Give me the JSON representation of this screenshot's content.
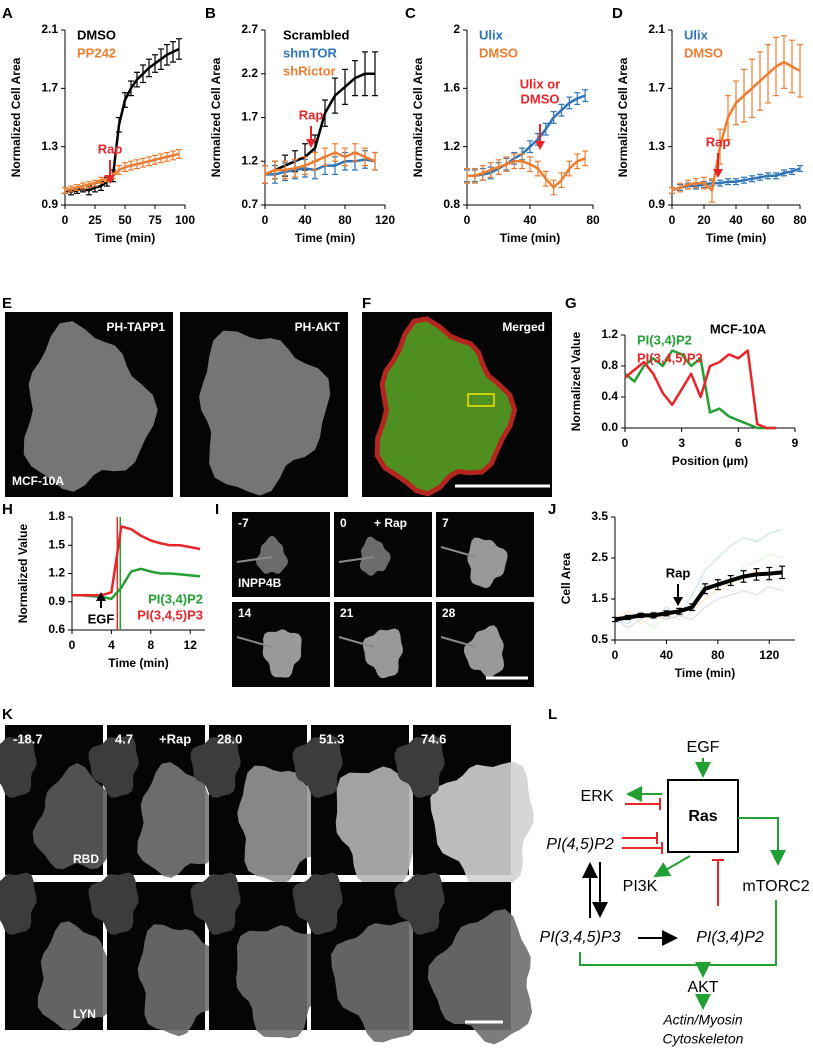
{
  "chart_data": [
    {
      "panel": "A",
      "type": "line",
      "xlabel": "Time (min)",
      "ylabel": "Normalized Cell Area",
      "legend": "upper left",
      "annotation": [
        "Rap"
      ],
      "annotation_color": "#e8262a",
      "x": [
        0,
        5,
        10,
        15,
        20,
        25,
        30,
        35,
        40,
        45,
        50,
        55,
        60,
        65,
        70,
        75,
        80,
        85,
        90,
        95
      ],
      "xlim": [
        0,
        100
      ],
      "xticks": [
        0,
        25,
        50,
        75,
        100
      ],
      "ylim": [
        0.9,
        2.1
      ],
      "yticks": [
        0.9,
        1.3,
        1.7,
        2.1
      ],
      "series": [
        {
          "name": "DMSO",
          "color": "#000000",
          "values": [
            1.0,
            0.99,
            1.0,
            1.01,
            1.0,
            1.02,
            1.03,
            1.06,
            1.1,
            1.45,
            1.62,
            1.7,
            1.76,
            1.8,
            1.84,
            1.87,
            1.9,
            1.93,
            1.95,
            1.97
          ],
          "errors": [
            0.02,
            0.02,
            0.02,
            0.02,
            0.03,
            0.03,
            0.03,
            0.03,
            0.04,
            0.05,
            0.05,
            0.05,
            0.05,
            0.06,
            0.06,
            0.06,
            0.07,
            0.07,
            0.07,
            0.07
          ]
        },
        {
          "name": "PP242",
          "color": "#ed7d31",
          "values": [
            1.0,
            1.01,
            1.02,
            1.03,
            1.04,
            1.05,
            1.07,
            1.08,
            1.1,
            1.14,
            1.16,
            1.17,
            1.18,
            1.19,
            1.2,
            1.21,
            1.22,
            1.23,
            1.24,
            1.25
          ],
          "errors": [
            0.02,
            0.02,
            0.02,
            0.02,
            0.02,
            0.02,
            0.02,
            0.02,
            0.02,
            0.03,
            0.03,
            0.03,
            0.03,
            0.03,
            0.03,
            0.03,
            0.03,
            0.03,
            0.03,
            0.03
          ]
        }
      ]
    },
    {
      "panel": "B",
      "type": "line",
      "xlabel": "Time (min)",
      "ylabel": "Normalized Cell Area",
      "legend": "upper left",
      "annotation": [
        "Rap"
      ],
      "annotation_color": "#e8262a",
      "x": [
        0,
        10,
        20,
        30,
        40,
        50,
        60,
        70,
        80,
        90,
        100,
        110
      ],
      "xlim": [
        0,
        120
      ],
      "xticks": [
        0,
        40,
        80,
        120
      ],
      "ylim": [
        0.7,
        2.7
      ],
      "yticks": [
        0.7,
        1.2,
        1.7,
        2.2,
        2.7
      ],
      "series": [
        {
          "name": "Scrambled",
          "color": "#000000",
          "values": [
            1.05,
            1.1,
            1.15,
            1.2,
            1.25,
            1.35,
            1.75,
            1.95,
            2.05,
            2.15,
            2.2,
            2.2
          ],
          "errors": [
            0.1,
            0.1,
            0.12,
            0.12,
            0.15,
            0.15,
            0.15,
            0.2,
            0.2,
            0.2,
            0.25,
            0.25
          ]
        },
        {
          "name": "shmTOR",
          "color": "#2e75b6",
          "values": [
            1.05,
            1.05,
            1.08,
            1.1,
            1.12,
            1.1,
            1.15,
            1.15,
            1.2,
            1.2,
            1.22,
            1.2
          ],
          "errors": [
            0.1,
            0.1,
            0.1,
            0.1,
            0.1,
            0.1,
            0.1,
            0.1,
            0.1,
            0.1,
            0.1,
            0.1
          ]
        },
        {
          "name": "shRictor",
          "color": "#ed7d31",
          "values": [
            1.05,
            1.1,
            1.1,
            1.12,
            1.15,
            1.2,
            1.25,
            1.3,
            1.25,
            1.3,
            1.25,
            1.2
          ],
          "errors": [
            0.1,
            0.1,
            0.1,
            0.1,
            0.1,
            0.1,
            0.1,
            0.1,
            0.1,
            0.1,
            0.1,
            0.1
          ]
        }
      ]
    },
    {
      "panel": "C",
      "type": "line",
      "xlabel": "Time (min)",
      "ylabel": "Normalized Cell Area",
      "legend": "upper left",
      "annotation": [
        "Ulix or",
        "DMSO"
      ],
      "annotation_color": "#e8262a",
      "x": [
        0,
        5,
        10,
        15,
        20,
        25,
        30,
        35,
        40,
        45,
        50,
        55,
        60,
        65,
        70,
        75
      ],
      "xlim": [
        0,
        80
      ],
      "xticks": [
        0,
        40,
        80
      ],
      "ylim": [
        0.8,
        2.0
      ],
      "yticks": [
        0.8,
        1.2,
        1.6,
        2.0
      ],
      "series": [
        {
          "name": "Ulix",
          "color": "#2e75b6",
          "values": [
            1.0,
            1.0,
            1.01,
            1.02,
            1.05,
            1.08,
            1.12,
            1.15,
            1.2,
            1.25,
            1.32,
            1.4,
            1.45,
            1.5,
            1.53,
            1.55
          ],
          "errors": [
            0.04,
            0.04,
            0.04,
            0.04,
            0.04,
            0.04,
            0.04,
            0.04,
            0.04,
            0.04,
            0.04,
            0.04,
            0.04,
            0.04,
            0.04,
            0.04
          ]
        },
        {
          "name": "DMSO",
          "color": "#ed7d31",
          "values": [
            1.0,
            1.0,
            1.02,
            1.04,
            1.06,
            1.08,
            1.1,
            1.1,
            1.08,
            1.05,
            0.98,
            0.92,
            0.97,
            1.05,
            1.1,
            1.12
          ],
          "errors": [
            0.05,
            0.05,
            0.05,
            0.05,
            0.05,
            0.05,
            0.05,
            0.05,
            0.05,
            0.05,
            0.05,
            0.05,
            0.05,
            0.05,
            0.05,
            0.05
          ]
        }
      ]
    },
    {
      "panel": "D",
      "type": "line",
      "xlabel": "Time (min)",
      "ylabel": "Normalized Cell Area",
      "legend": "upper left",
      "annotation": [
        "Rap"
      ],
      "annotation_color": "#e8262a",
      "x": [
        0,
        5,
        10,
        15,
        20,
        25,
        30,
        35,
        40,
        45,
        50,
        55,
        60,
        65,
        70,
        75,
        80
      ],
      "xlim": [
        0,
        80
      ],
      "xticks": [
        0,
        20,
        40,
        60,
        80
      ],
      "ylim": [
        0.9,
        2.1
      ],
      "yticks": [
        0.9,
        1.3,
        1.7,
        2.1
      ],
      "series": [
        {
          "name": "Ulix",
          "color": "#2e75b6",
          "values": [
            1.0,
            1.02,
            1.03,
            1.03,
            1.04,
            1.05,
            1.05,
            1.06,
            1.06,
            1.07,
            1.08,
            1.09,
            1.1,
            1.1,
            1.12,
            1.13,
            1.15
          ],
          "errors": [
            0.02,
            0.02,
            0.02,
            0.02,
            0.02,
            0.02,
            0.02,
            0.02,
            0.02,
            0.02,
            0.02,
            0.02,
            0.02,
            0.02,
            0.02,
            0.02,
            0.02
          ]
        },
        {
          "name": "DMSO",
          "color": "#ed7d31",
          "values": [
            1.0,
            1.02,
            1.04,
            1.05,
            1.05,
            1.0,
            1.3,
            1.5,
            1.6,
            1.65,
            1.7,
            1.75,
            1.8,
            1.85,
            1.88,
            1.85,
            1.82
          ],
          "errors": [
            0.02,
            0.03,
            0.03,
            0.03,
            0.04,
            0.08,
            0.12,
            0.15,
            0.15,
            0.18,
            0.2,
            0.2,
            0.2,
            0.2,
            0.18,
            0.18,
            0.18
          ]
        }
      ]
    },
    {
      "panel": "G",
      "type": "line",
      "xlabel": "Position (µm)",
      "ylabel": "Normalized Value",
      "legend": "upper left",
      "annotation": [
        "MCF-10A"
      ],
      "annotation_color": "#000000",
      "x": [
        0,
        0.5,
        1,
        1.5,
        2,
        2.5,
        3,
        3.5,
        4,
        4.5,
        5,
        5.5,
        6,
        6.5,
        7,
        7.5,
        8
      ],
      "xlim": [
        0,
        9
      ],
      "xticks": [
        0,
        3,
        6,
        9
      ],
      "ylim": [
        0,
        1.2
      ],
      "yticks": [
        {
          "value": 0,
          "label": "0.0"
        },
        0.4,
        0.8,
        1.2
      ],
      "series": [
        {
          "name": "PI(3,4)P2",
          "color": "#22a033",
          "values": [
            0.7,
            0.6,
            0.8,
            0.9,
            0.8,
            1.0,
            0.95,
            0.8,
            0.9,
            0.2,
            0.25,
            0.15,
            0.1,
            0.05,
            0,
            0,
            0
          ]
        },
        {
          "name": "PI(3,4,5)P3",
          "color": "#e8262a",
          "values": [
            0.65,
            0.75,
            0.85,
            0.7,
            0.45,
            0.3,
            0.5,
            0.7,
            0.4,
            0.8,
            0.85,
            0.95,
            0.9,
            1.0,
            0.05,
            0,
            0
          ]
        }
      ]
    },
    {
      "panel": "H",
      "type": "line",
      "xlabel": "Time (min)",
      "ylabel": "Normalized Value",
      "legend": "lower right",
      "annotation": [
        "EGF"
      ],
      "annotation_color": "#000000",
      "x": [
        0,
        1,
        2,
        3,
        4,
        5,
        6,
        7,
        8,
        9,
        10,
        11,
        12,
        13
      ],
      "xlim": [
        0,
        13.5
      ],
      "xticks": [
        0,
        4,
        8,
        12
      ],
      "ylim": [
        0.6,
        1.8
      ],
      "yticks": [
        0.6,
        0.9,
        1.2,
        1.5,
        1.8
      ],
      "vlines": [
        {
          "value": 4.6,
          "color": "#e8262a"
        },
        {
          "value": 4.9,
          "color": "#22a033"
        }
      ],
      "series": [
        {
          "name": "PI(3,4)P2",
          "color": "#22a033",
          "values": [
            0.97,
            0.97,
            0.96,
            0.95,
            0.93,
            1.05,
            1.22,
            1.25,
            1.22,
            1.2,
            1.2,
            1.19,
            1.18,
            1.17
          ]
        },
        {
          "name": "PI(3,4,5)P3",
          "color": "#e8262a",
          "values": [
            0.97,
            0.97,
            0.97,
            0.97,
            1.0,
            1.7,
            1.67,
            1.6,
            1.55,
            1.52,
            1.5,
            1.5,
            1.48,
            1.46
          ]
        }
      ]
    },
    {
      "panel": "J",
      "type": "line",
      "xlabel": "Time (min)",
      "ylabel": "Cell Area",
      "annotation": [
        "Rap"
      ],
      "annotation_color": "#000000",
      "x": [
        0,
        10,
        20,
        30,
        40,
        50,
        60,
        70,
        80,
        90,
        100,
        110,
        120,
        130
      ],
      "xlim": [
        0,
        140
      ],
      "xticks": [
        0,
        40,
        80,
        120
      ],
      "ylim": [
        0.5,
        3.5
      ],
      "yticks": [
        0.5,
        1.5,
        2.5,
        3.5
      ],
      "series": [
        {
          "color": "#9ecae1",
          "values": [
            1.0,
            0.9,
            1.2,
            1.0,
            1.3,
            1.1,
            1.6,
            2.2,
            2.5,
            2.8,
            3.0,
            2.9,
            3.1,
            3.2
          ]
        },
        {
          "color": "#fdd0a2",
          "values": [
            1.0,
            1.2,
            0.9,
            1.1,
            1.0,
            1.3,
            1.2,
            1.5,
            1.7,
            1.9,
            2.0,
            2.2,
            2.1,
            2.3
          ]
        },
        {
          "color": "#c7e9c0",
          "values": [
            1.0,
            1.1,
            1.0,
            0.8,
            1.1,
            1.0,
            1.4,
            1.9,
            2.0,
            1.8,
            2.3,
            2.4,
            2.6,
            2.5
          ]
        },
        {
          "color": "#bcbddc",
          "values": [
            1.0,
            0.8,
            1.0,
            1.2,
            1.0,
            1.1,
            1.0,
            1.3,
            1.5,
            1.6,
            1.7,
            1.6,
            1.8,
            1.7
          ]
        },
        {
          "color": "#000000",
          "values": [
            1.0,
            1.05,
            1.1,
            1.1,
            1.15,
            1.2,
            1.3,
            1.75,
            1.85,
            1.95,
            2.05,
            2.1,
            2.12,
            2.15
          ],
          "errors": [
            0.05,
            0.05,
            0.05,
            0.06,
            0.06,
            0.07,
            0.08,
            0.12,
            0.12,
            0.12,
            0.14,
            0.14,
            0.15,
            0.15
          ]
        }
      ]
    }
  ],
  "images": {
    "E": {
      "panel": "E",
      "frames": [
        "PH-TAPP1",
        "PH-AKT"
      ],
      "note": "MCF-10A"
    },
    "F": {
      "panel": "F",
      "frames": [
        "Merged"
      ]
    },
    "I": {
      "panel": "I",
      "frames": [
        "-7",
        "0",
        "7",
        "14",
        "21",
        "28"
      ],
      "extra": "+ Rap",
      "note": "INPP4B"
    },
    "K": {
      "panel": "K",
      "frames": [
        "-18.7",
        "4.7",
        "28.0",
        "51.3",
        "74.6"
      ],
      "extra": "+Rap",
      "rows": [
        "RBD",
        "LYN"
      ]
    }
  },
  "diagram": {
    "panel": "L",
    "nodes": [
      "EGF",
      "Ras",
      "ERK",
      "PI(4,5)P2",
      "PI3K",
      "mTORC2",
      "PI(3,4,5)P3",
      "PI(3,4)P2",
      "AKT",
      "Actin/Myosin",
      "Cytoskeleton"
    ]
  }
}
